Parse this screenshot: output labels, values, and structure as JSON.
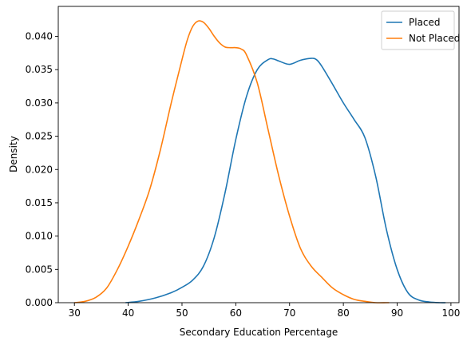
{
  "chart_data": {
    "type": "line",
    "title": "",
    "xlabel": "Secondary Education Percentage",
    "ylabel": "Density",
    "xlim": [
      27,
      101.5
    ],
    "ylim": [
      0,
      0.0445
    ],
    "x_ticks": [
      30,
      40,
      50,
      60,
      70,
      80,
      90,
      100
    ],
    "x_tick_labels": [
      "30",
      "40",
      "50",
      "60",
      "70",
      "80",
      "90",
      "100"
    ],
    "y_ticks": [
      0,
      0.005,
      0.01,
      0.015,
      0.02,
      0.025,
      0.03,
      0.035,
      0.04
    ],
    "y_tick_labels": [
      "0.000",
      "0.005",
      "0.010",
      "0.015",
      "0.020",
      "0.025",
      "0.030",
      "0.035",
      "0.040"
    ],
    "grid": false,
    "legend_position": "top-right",
    "series": [
      {
        "name": "Placed",
        "color": "#1f77b4",
        "x": [
          39.5,
          42,
          45,
          48,
          50,
          52,
          54,
          56,
          58,
          60,
          62,
          64,
          66,
          67,
          68,
          70,
          72,
          74,
          75,
          76,
          78,
          80,
          82,
          84,
          86,
          88,
          90,
          92,
          94,
          96,
          98,
          99
        ],
        "y": [
          0.0,
          0.0002,
          0.0007,
          0.0015,
          0.0023,
          0.0034,
          0.0055,
          0.0098,
          0.0165,
          0.0245,
          0.031,
          0.035,
          0.0365,
          0.0366,
          0.0363,
          0.0358,
          0.0364,
          0.0367,
          0.0365,
          0.0355,
          0.0328,
          0.03,
          0.0275,
          0.0248,
          0.019,
          0.011,
          0.005,
          0.0015,
          0.0004,
          0.0001,
          0.0,
          0.0
        ]
      },
      {
        "name": "Not Placed",
        "color": "#ff7f0e",
        "x": [
          30,
          32,
          34,
          36,
          38,
          40,
          42,
          44,
          46,
          48,
          50,
          51,
          52,
          53,
          54,
          55,
          56,
          57,
          58,
          59,
          60,
          61,
          62,
          64,
          66,
          68,
          70,
          72,
          74,
          76,
          78,
          80,
          82,
          84,
          86,
          88,
          88.5
        ],
        "y": [
          0.0,
          0.0002,
          0.0008,
          0.0022,
          0.005,
          0.0085,
          0.0125,
          0.017,
          0.023,
          0.03,
          0.0365,
          0.0395,
          0.0415,
          0.0423,
          0.0421,
          0.0412,
          0.04,
          0.039,
          0.0384,
          0.0383,
          0.0383,
          0.0381,
          0.0372,
          0.033,
          0.026,
          0.019,
          0.013,
          0.0082,
          0.0055,
          0.0038,
          0.0022,
          0.0012,
          0.0005,
          0.0002,
          0.0,
          0.0,
          0.0
        ]
      }
    ]
  }
}
